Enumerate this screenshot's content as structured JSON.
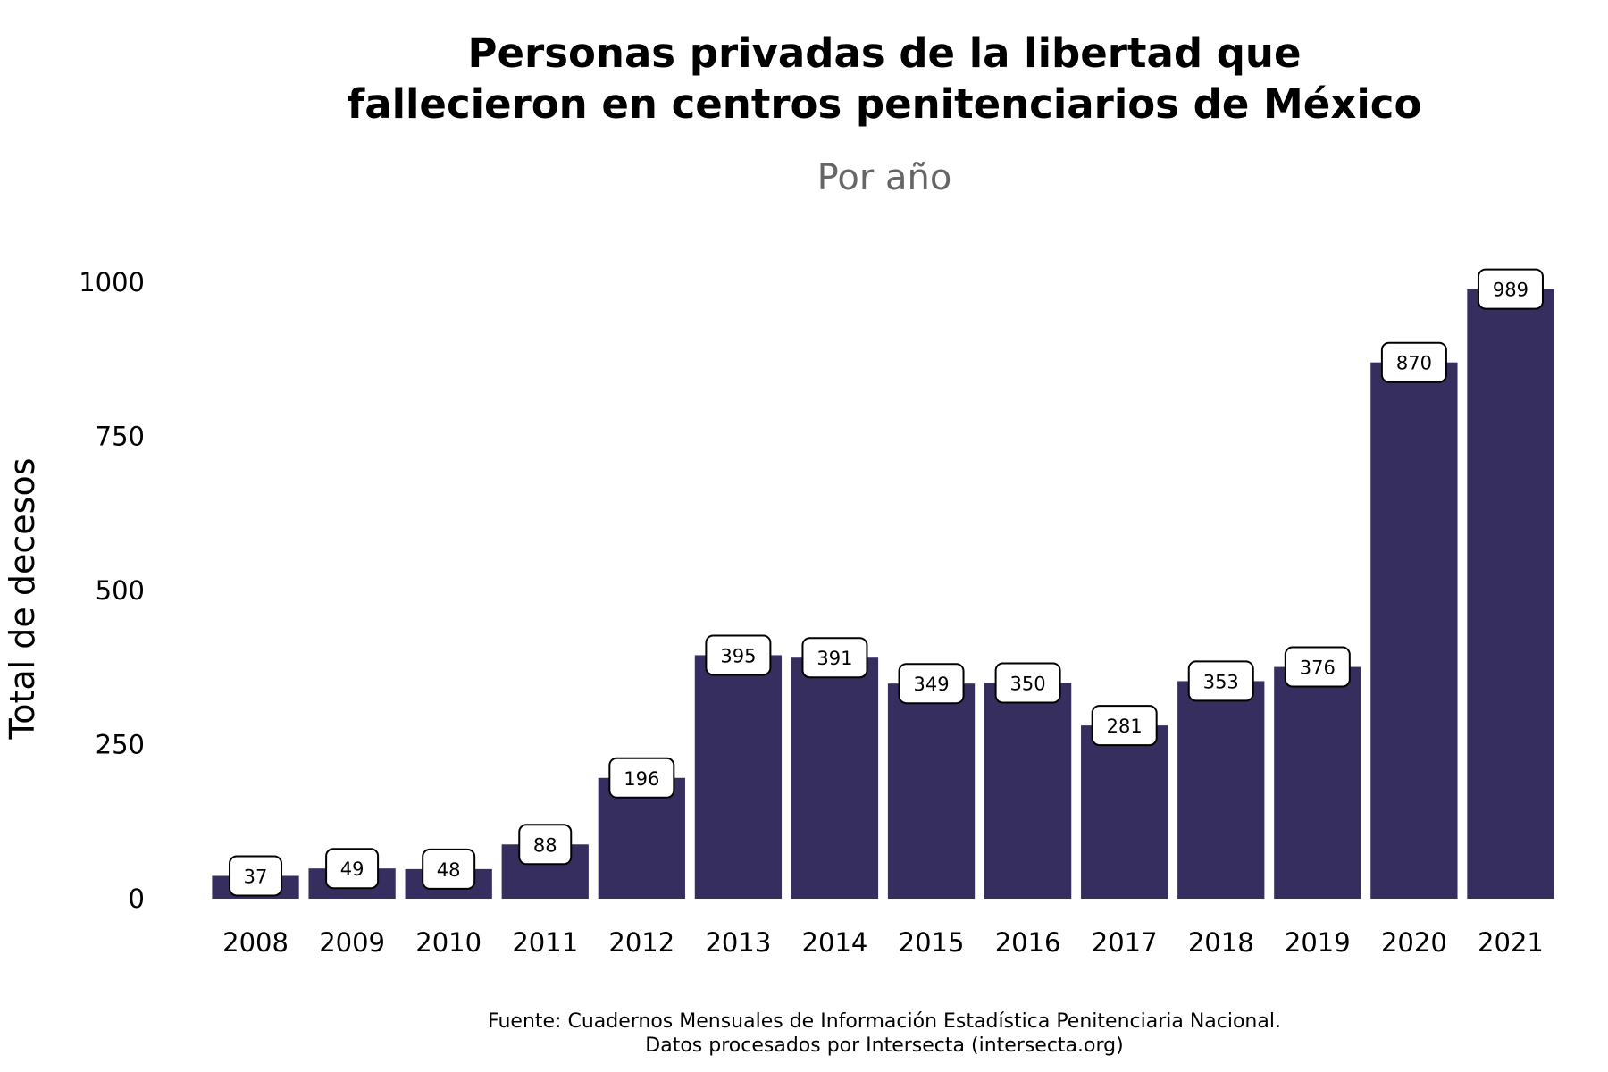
{
  "chart_data": {
    "type": "bar",
    "title_lines": [
      "Personas privadas de la libertad que",
      "fallecieron en centros penitenciarios de México"
    ],
    "subtitle": "Por año",
    "ylabel": "Total de decesos",
    "xlabel": "",
    "categories": [
      "2008",
      "2009",
      "2010",
      "2011",
      "2012",
      "2013",
      "2014",
      "2015",
      "2016",
      "2017",
      "2018",
      "2019",
      "2020",
      "2021"
    ],
    "values": [
      37,
      49,
      48,
      88,
      196,
      395,
      391,
      349,
      350,
      281,
      353,
      376,
      870,
      989
    ],
    "data_labels": [
      "37",
      "49",
      "48",
      "88",
      "196",
      "395",
      "391",
      "349",
      "350",
      "281",
      "353",
      "376",
      "870",
      "989"
    ],
    "ylim": [
      0,
      1000
    ],
    "yticks": [
      0,
      250,
      500,
      750,
      1000
    ],
    "ytick_labels": [
      "0",
      "250",
      "500",
      "750",
      "1000"
    ],
    "grid": false,
    "legend": "none",
    "bar_color": "#352E5E",
    "caption_lines": [
      "Fuente: Cuadernos Mensuales de Información Estadística Penitenciaria Nacional.",
      "Datos procesados por Intersecta (intersecta.org)"
    ]
  }
}
